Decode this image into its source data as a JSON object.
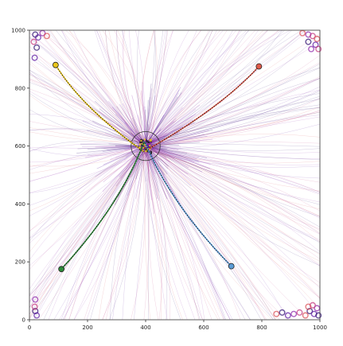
{
  "chart_data": {
    "type": "scatter",
    "title": "",
    "xlabel": "",
    "ylabel": "",
    "xlim": [
      0,
      1000
    ],
    "ylim": [
      0,
      1000
    ],
    "x_ticks": [
      0,
      200,
      400,
      600,
      800,
      1000
    ],
    "y_ticks": [
      0,
      200,
      400,
      600,
      800,
      1000
    ],
    "x_tick_labels": [
      "0",
      "200",
      "400",
      "600",
      "800",
      "1000"
    ],
    "y_tick_labels": [
      "0",
      "200",
      "400",
      "600",
      "800",
      "1000"
    ],
    "grid": false,
    "legend": "none",
    "hub": {
      "x": 400,
      "y": 600,
      "radius": 50
    },
    "highlighted_trajectories": [
      {
        "color": "#e8c51a",
        "start": [
          90,
          880
        ],
        "end": [
          395,
          580
        ]
      },
      {
        "color": "#e05a4a",
        "start": [
          790,
          875
        ],
        "end": [
          410,
          590
        ]
      },
      {
        "color": "#2e8b3a",
        "start": [
          110,
          175
        ],
        "end": [
          395,
          615
        ]
      },
      {
        "color": "#5b9bd5",
        "start": [
          695,
          185
        ],
        "end": [
          398,
          612
        ]
      }
    ],
    "background_trajectories": {
      "count": 320,
      "palette": [
        "#2a0a6e",
        "#5a14a0",
        "#8a1fa8",
        "#c0307a",
        "#d8474f"
      ]
    },
    "boundary_markers": [
      [
        20,
        985
      ],
      [
        30,
        975
      ],
      [
        45,
        990
      ],
      [
        15,
        960
      ],
      [
        60,
        980
      ],
      [
        25,
        940
      ],
      [
        18,
        905
      ],
      [
        960,
        985
      ],
      [
        975,
        980
      ],
      [
        990,
        970
      ],
      [
        960,
        960
      ],
      [
        985,
        950
      ],
      [
        970,
        935
      ],
      [
        995,
        935
      ],
      [
        940,
        990
      ],
      [
        20,
        30
      ],
      [
        25,
        15
      ],
      [
        20,
        70
      ],
      [
        18,
        45
      ],
      [
        850,
        20
      ],
      [
        870,
        25
      ],
      [
        890,
        15
      ],
      [
        910,
        20
      ],
      [
        930,
        25
      ],
      [
        950,
        15
      ],
      [
        965,
        30
      ],
      [
        980,
        20
      ],
      [
        990,
        40
      ],
      [
        975,
        50
      ],
      [
        960,
        45
      ],
      [
        995,
        15
      ]
    ]
  }
}
